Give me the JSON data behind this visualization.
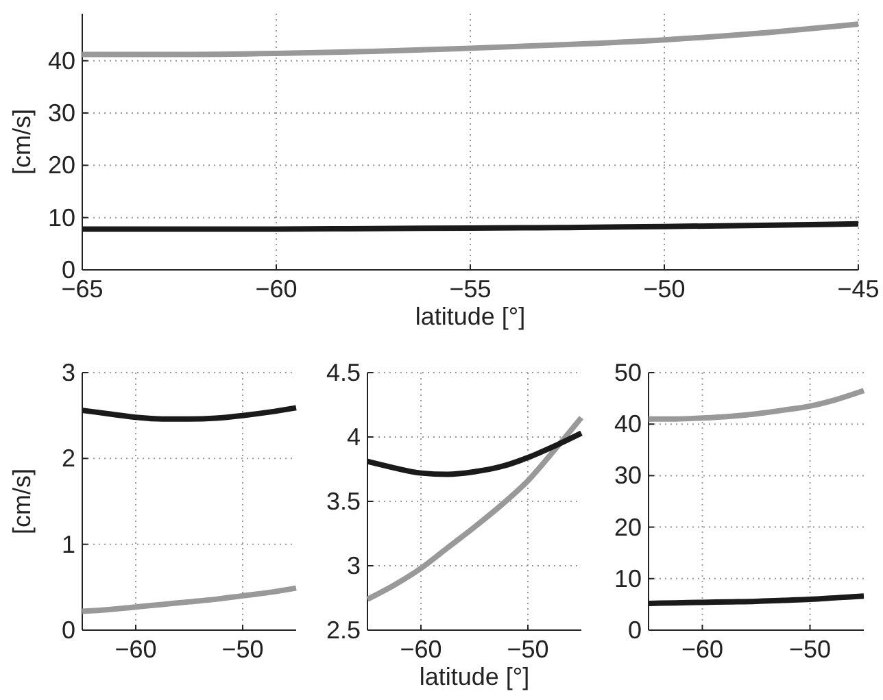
{
  "chart_data": [
    {
      "type": "line",
      "xlabel": "latitude [°]",
      "ylabel": "[cm/s]",
      "xlim": [
        -65,
        -45
      ],
      "xticks": [
        {
          "value": -65,
          "label": "−65"
        },
        {
          "value": -60,
          "label": "−60"
        },
        {
          "value": -55,
          "label": "−55"
        },
        {
          "value": -50,
          "label": "−50"
        },
        {
          "value": -45,
          "label": "−45"
        }
      ],
      "ylim": [
        0,
        49
      ],
      "yticks": [
        0,
        10,
        20,
        30,
        40
      ],
      "grid": true,
      "x": [
        -65,
        -62.5,
        -60,
        -57.5,
        -55,
        -52.5,
        -50,
        -47.5,
        -45
      ],
      "series": [
        {
          "color": "#999999",
          "values": [
            41.2,
            41.2,
            41.4,
            41.8,
            42.4,
            43.1,
            44,
            45.3,
            47
          ]
        },
        {
          "color": "#1a1a1a",
          "values": [
            7.8,
            7.8,
            7.8,
            7.9,
            8.0,
            8.1,
            8.3,
            8.5,
            8.8
          ]
        }
      ]
    },
    {
      "type": "line",
      "ylabel": "[cm/s]",
      "xlim": [
        -65,
        -45
      ],
      "xticks": [
        {
          "value": -60,
          "label": "−60"
        },
        {
          "value": -50,
          "label": "−50"
        }
      ],
      "ylim": [
        0,
        3
      ],
      "yticks": [
        0,
        1,
        2,
        3
      ],
      "grid": true,
      "x": [
        -65,
        -62.5,
        -60,
        -57.5,
        -55,
        -52.5,
        -50,
        -47.5,
        -45
      ],
      "series": [
        {
          "color": "#999999",
          "values": [
            0.22,
            0.24,
            0.27,
            0.3,
            0.33,
            0.36,
            0.4,
            0.44,
            0.49
          ]
        },
        {
          "color": "#1a1a1a",
          "values": [
            2.56,
            2.52,
            2.48,
            2.46,
            2.46,
            2.47,
            2.5,
            2.54,
            2.59
          ]
        }
      ]
    },
    {
      "type": "line",
      "xlabel": "latitude [°]",
      "xlim": [
        -65,
        -45
      ],
      "xticks": [
        {
          "value": -60,
          "label": "−60"
        },
        {
          "value": -50,
          "label": "−50"
        }
      ],
      "ylim": [
        2.5,
        4.5
      ],
      "yticks": [
        2.5,
        3,
        3.5,
        4,
        4.5
      ],
      "grid": true,
      "x": [
        -65,
        -62.5,
        -60,
        -57.5,
        -55,
        -52.5,
        -50,
        -47.5,
        -45
      ],
      "series": [
        {
          "color": "#999999",
          "values": [
            2.74,
            2.85,
            2.98,
            3.14,
            3.3,
            3.47,
            3.66,
            3.9,
            4.15
          ]
        },
        {
          "color": "#1a1a1a",
          "values": [
            3.81,
            3.76,
            3.72,
            3.71,
            3.73,
            3.77,
            3.84,
            3.93,
            4.03
          ]
        }
      ]
    },
    {
      "type": "line",
      "xlim": [
        -65,
        -45
      ],
      "xticks": [
        {
          "value": -60,
          "label": "−60"
        },
        {
          "value": -50,
          "label": "−50"
        }
      ],
      "ylim": [
        0,
        50
      ],
      "yticks": [
        0,
        10,
        20,
        30,
        40,
        50
      ],
      "grid": true,
      "x": [
        -65,
        -62.5,
        -60,
        -57.5,
        -55,
        -52.5,
        -50,
        -47.5,
        -45
      ],
      "series": [
        {
          "color": "#999999",
          "values": [
            41,
            41,
            41.2,
            41.5,
            42,
            42.7,
            43.5,
            44.8,
            46.5
          ]
        },
        {
          "color": "#1a1a1a",
          "values": [
            5.2,
            5.3,
            5.4,
            5.5,
            5.6,
            5.8,
            6,
            6.3,
            6.6
          ]
        }
      ]
    }
  ]
}
